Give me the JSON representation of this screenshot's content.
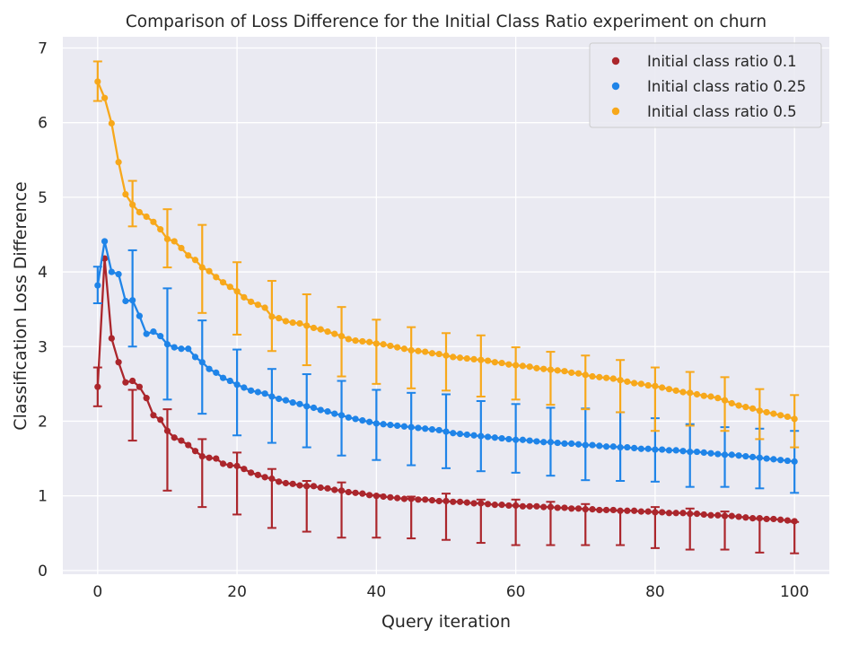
{
  "chart_data": {
    "type": "line",
    "title": "Comparison of Loss Difference for the Initial Class Ratio experiment on churn",
    "xlabel": "Query iteration",
    "ylabel": "Classification Loss Difference",
    "xlim": [
      -5,
      105
    ],
    "ylim": [
      -0.05,
      7.15
    ],
    "grid": true,
    "background": "#eaeaf2",
    "legend_position": "top-right",
    "x_ticks": [
      0,
      20,
      40,
      60,
      80,
      100
    ],
    "y_ticks": [
      0,
      1,
      2,
      3,
      4,
      5,
      6,
      7
    ],
    "x": [
      0,
      1,
      2,
      3,
      4,
      5,
      6,
      7,
      8,
      9,
      10,
      11,
      12,
      13,
      14,
      15,
      16,
      17,
      18,
      19,
      20,
      21,
      22,
      23,
      24,
      25,
      26,
      27,
      28,
      29,
      30,
      31,
      32,
      33,
      34,
      35,
      36,
      37,
      38,
      39,
      40,
      41,
      42,
      43,
      44,
      45,
      46,
      47,
      48,
      49,
      50,
      51,
      52,
      53,
      54,
      55,
      56,
      57,
      58,
      59,
      60,
      61,
      62,
      63,
      64,
      65,
      66,
      67,
      68,
      69,
      70,
      71,
      72,
      73,
      74,
      75,
      76,
      77,
      78,
      79,
      80,
      81,
      82,
      83,
      84,
      85,
      86,
      87,
      88,
      89,
      90,
      91,
      92,
      93,
      94,
      95,
      96,
      97,
      98,
      99,
      100
    ],
    "error_bar_x": [
      0,
      5,
      10,
      15,
      20,
      25,
      30,
      35,
      40,
      45,
      50,
      55,
      60,
      65,
      70,
      75,
      80,
      85,
      90,
      95,
      100
    ],
    "series": [
      {
        "name": "Initial class ratio 0.1",
        "color": "#ab262c",
        "values": [
          2.46,
          4.18,
          3.11,
          2.79,
          2.52,
          2.54,
          2.46,
          2.31,
          2.08,
          2.02,
          1.87,
          1.78,
          1.74,
          1.68,
          1.6,
          1.53,
          1.51,
          1.5,
          1.43,
          1.41,
          1.4,
          1.36,
          1.31,
          1.28,
          1.25,
          1.23,
          1.19,
          1.17,
          1.16,
          1.14,
          1.13,
          1.13,
          1.11,
          1.1,
          1.08,
          1.07,
          1.05,
          1.04,
          1.03,
          1.01,
          1.0,
          0.99,
          0.98,
          0.97,
          0.96,
          0.96,
          0.95,
          0.95,
          0.94,
          0.93,
          0.93,
          0.92,
          0.92,
          0.91,
          0.9,
          0.9,
          0.89,
          0.88,
          0.88,
          0.87,
          0.87,
          0.86,
          0.86,
          0.86,
          0.85,
          0.85,
          0.84,
          0.84,
          0.83,
          0.83,
          0.82,
          0.82,
          0.81,
          0.81,
          0.81,
          0.8,
          0.8,
          0.8,
          0.79,
          0.79,
          0.78,
          0.78,
          0.77,
          0.77,
          0.77,
          0.76,
          0.76,
          0.75,
          0.74,
          0.74,
          0.73,
          0.73,
          0.72,
          0.71,
          0.7,
          0.7,
          0.69,
          0.69,
          0.68,
          0.67,
          0.66
        ],
        "error_lower": [
          2.2,
          1.74,
          1.07,
          0.85,
          0.75,
          0.57,
          0.52,
          0.44,
          0.44,
          0.43,
          0.41,
          0.37,
          0.34,
          0.34,
          0.34,
          0.34,
          0.3,
          0.28,
          0.28,
          0.24,
          0.23
        ],
        "error_upper": [
          2.72,
          2.42,
          2.16,
          1.76,
          1.58,
          1.36,
          1.2,
          1.18,
          1.01,
          0.99,
          1.03,
          0.95,
          0.95,
          0.92,
          0.89,
          0.8,
          0.85,
          0.83,
          0.79,
          0.69,
          0.65
        ]
      },
      {
        "name": "Initial class ratio 0.25",
        "color": "#1f84e8",
        "values": [
          3.82,
          4.41,
          4.0,
          3.97,
          3.61,
          3.62,
          3.41,
          3.17,
          3.2,
          3.14,
          3.03,
          2.99,
          2.97,
          2.97,
          2.86,
          2.79,
          2.7,
          2.65,
          2.58,
          2.54,
          2.49,
          2.45,
          2.41,
          2.39,
          2.37,
          2.33,
          2.3,
          2.28,
          2.25,
          2.23,
          2.2,
          2.18,
          2.15,
          2.13,
          2.1,
          2.08,
          2.05,
          2.03,
          2.01,
          1.99,
          1.97,
          1.96,
          1.95,
          1.94,
          1.93,
          1.92,
          1.91,
          1.9,
          1.89,
          1.88,
          1.86,
          1.84,
          1.83,
          1.82,
          1.81,
          1.8,
          1.79,
          1.78,
          1.77,
          1.76,
          1.75,
          1.75,
          1.74,
          1.73,
          1.72,
          1.72,
          1.71,
          1.7,
          1.7,
          1.69,
          1.68,
          1.68,
          1.67,
          1.66,
          1.66,
          1.65,
          1.65,
          1.64,
          1.63,
          1.63,
          1.62,
          1.62,
          1.61,
          1.61,
          1.6,
          1.59,
          1.59,
          1.58,
          1.57,
          1.56,
          1.55,
          1.55,
          1.54,
          1.53,
          1.52,
          1.51,
          1.5,
          1.49,
          1.48,
          1.47,
          1.46
        ],
        "error_lower": [
          3.58,
          3.0,
          2.29,
          2.1,
          1.81,
          1.71,
          1.65,
          1.54,
          1.48,
          1.41,
          1.37,
          1.33,
          1.31,
          1.27,
          1.21,
          1.2,
          1.19,
          1.12,
          1.12,
          1.1,
          1.04
        ],
        "error_upper": [
          4.07,
          4.29,
          3.78,
          3.35,
          2.96,
          2.7,
          2.63,
          2.54,
          2.42,
          2.38,
          2.36,
          2.27,
          2.23,
          2.18,
          2.17,
          2.12,
          2.04,
          1.96,
          1.92,
          1.9,
          1.87
        ]
      },
      {
        "name": "Initial class ratio 0.5",
        "color": "#f7a81b",
        "values": [
          6.55,
          6.33,
          5.99,
          5.47,
          5.04,
          4.9,
          4.8,
          4.74,
          4.67,
          4.57,
          4.44,
          4.41,
          4.32,
          4.22,
          4.16,
          4.06,
          4.01,
          3.93,
          3.86,
          3.8,
          3.74,
          3.66,
          3.6,
          3.56,
          3.52,
          3.4,
          3.38,
          3.34,
          3.32,
          3.31,
          3.28,
          3.25,
          3.23,
          3.2,
          3.17,
          3.14,
          3.1,
          3.08,
          3.07,
          3.06,
          3.04,
          3.03,
          3.01,
          2.99,
          2.97,
          2.95,
          2.94,
          2.93,
          2.91,
          2.9,
          2.88,
          2.86,
          2.85,
          2.84,
          2.83,
          2.82,
          2.81,
          2.79,
          2.78,
          2.76,
          2.75,
          2.74,
          2.73,
          2.71,
          2.7,
          2.69,
          2.68,
          2.67,
          2.65,
          2.64,
          2.62,
          2.6,
          2.59,
          2.58,
          2.57,
          2.55,
          2.53,
          2.51,
          2.5,
          2.48,
          2.47,
          2.45,
          2.43,
          2.41,
          2.39,
          2.38,
          2.36,
          2.34,
          2.33,
          2.31,
          2.28,
          2.24,
          2.21,
          2.19,
          2.17,
          2.14,
          2.12,
          2.1,
          2.08,
          2.06,
          2.03
        ],
        "error_lower": [
          6.29,
          4.61,
          4.06,
          3.45,
          3.16,
          2.94,
          2.75,
          2.6,
          2.5,
          2.44,
          2.41,
          2.33,
          2.29,
          2.22,
          2.16,
          2.12,
          1.87,
          1.94,
          1.87,
          1.76,
          1.65
        ],
        "error_upper": [
          6.82,
          5.22,
          4.84,
          4.63,
          4.13,
          3.88,
          3.7,
          3.53,
          3.36,
          3.26,
          3.18,
          3.15,
          2.99,
          2.93,
          2.88,
          2.82,
          2.72,
          2.66,
          2.59,
          2.43,
          2.35
        ]
      }
    ]
  }
}
